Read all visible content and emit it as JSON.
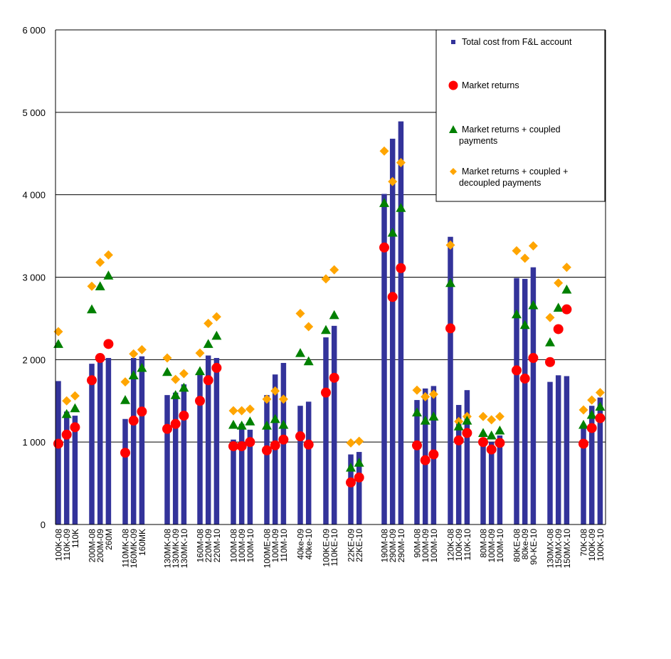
{
  "chart_data": {
    "type": "bar",
    "title": "",
    "xlabel": "",
    "ylabel": "",
    "ylim": [
      0,
      6000
    ],
    "yticks": [
      0,
      1000,
      2000,
      3000,
      4000,
      5000,
      6000
    ],
    "ytick_labels": [
      "0",
      "1 000",
      "2 000",
      "3 000",
      "4 000",
      "5 000",
      "6 000"
    ],
    "grid": true,
    "legend_position": "top-right",
    "colors": {
      "bar": "#33339a",
      "market": "#ff0000",
      "coupled": "#008000",
      "decoupled": "#ffa500",
      "grid": "#000000"
    },
    "groups": [
      {
        "categories": [
          "100K-08",
          "110K-09",
          "110K"
        ]
      },
      {
        "categories": [
          "200M-08",
          "200M-09",
          "260M"
        ]
      },
      {
        "categories": [
          "110MK-08",
          "160MK-09",
          "160MK"
        ]
      },
      {
        "categories": [
          "130MK-08",
          "130MK-09",
          "130MK-10"
        ]
      },
      {
        "categories": [
          "160M-08",
          "220M-09",
          "220M-10"
        ]
      },
      {
        "categories": [
          "100M-08",
          "100M-09",
          "100M-10"
        ]
      },
      {
        "categories": [
          "100ME-08",
          "100M-09",
          "110M-10"
        ]
      },
      {
        "categories": [
          "40ke-09",
          "40ke-10"
        ]
      },
      {
        "categories": [
          "100KE-09",
          "110KE-10"
        ]
      },
      {
        "categories": [
          "22KE-09",
          "22KE-10"
        ]
      },
      {
        "categories": [
          "190M-08",
          "290M-09",
          "290M-10"
        ]
      },
      {
        "categories": [
          "90M-08",
          "100M-09",
          "100M-10"
        ]
      },
      {
        "categories": [
          "120K-08",
          "100K-09",
          "110K-10"
        ]
      },
      {
        "categories": [
          "80M-08",
          "100M-09",
          "100M-10"
        ]
      },
      {
        "categories": [
          "80KE-08",
          "80ke-09",
          "90-KE-10"
        ]
      },
      {
        "categories": [
          "130MX-08",
          "150MX-09",
          "150MX-10"
        ]
      },
      {
        "categories": [
          "70K-08",
          "100K-09",
          "100K-10"
        ]
      }
    ],
    "series": [
      {
        "name": "Total cost from F&L account",
        "type": "bar",
        "values": [
          1740,
          1370,
          1320,
          1950,
          2000,
          2020,
          1280,
          2020,
          2040,
          1570,
          1600,
          1700,
          1860,
          2050,
          2020,
          1030,
          1220,
          1150,
          1570,
          1820,
          1960,
          1440,
          1490,
          2270,
          2410,
          850,
          880,
          4010,
          4680,
          4890,
          1510,
          1650,
          1680,
          3490,
          1450,
          1630,
          1050,
          1000,
          1080,
          2990,
          2980,
          3120,
          1730,
          1810,
          1800,
          1200,
          1440,
          1540
        ]
      },
      {
        "name": "Market returns",
        "type": "circle",
        "values": [
          980,
          1090,
          1180,
          1750,
          2020,
          2190,
          870,
          1260,
          1370,
          1160,
          1220,
          1320,
          1500,
          1750,
          1900,
          950,
          950,
          1000,
          900,
          960,
          1030,
          1070,
          970,
          1600,
          1780,
          510,
          570,
          3360,
          2760,
          3110,
          960,
          780,
          850,
          2380,
          1020,
          1110,
          1000,
          910,
          990,
          1870,
          1770,
          2020,
          1970,
          2370,
          2610,
          980,
          1170,
          1290
        ]
      },
      {
        "name": "Market returns + coupled payments",
        "type": "triangle",
        "values": [
          2190,
          1340,
          1410,
          2610,
          2890,
          3020,
          1510,
          1810,
          1900,
          1850,
          1570,
          1660,
          1860,
          2190,
          2290,
          1210,
          1200,
          1250,
          1200,
          1280,
          1210,
          2080,
          1980,
          2360,
          2540,
          690,
          750,
          3900,
          3540,
          3840,
          1360,
          1260,
          1310,
          2930,
          1190,
          1260,
          1110,
          1080,
          1140,
          2550,
          2420,
          2660,
          2210,
          2630,
          2850,
          1210,
          1330,
          1430
        ]
      },
      {
        "name": "Market returns + coupled + decoupled payments",
        "type": "diamond",
        "values": [
          2340,
          1500,
          1560,
          2890,
          3180,
          3270,
          1730,
          2070,
          2120,
          2020,
          1760,
          1830,
          2080,
          2440,
          2520,
          1380,
          1380,
          1400,
          1520,
          1620,
          1520,
          2560,
          2400,
          2980,
          3090,
          990,
          1010,
          4530,
          4160,
          4390,
          1630,
          1550,
          1580,
          3390,
          1250,
          1310,
          1310,
          1270,
          1310,
          3320,
          3230,
          3380,
          2510,
          2930,
          3120,
          1390,
          1510,
          1600
        ]
      }
    ],
    "legend": [
      {
        "label": "Total cost from F&L account",
        "marker": "square"
      },
      {
        "label": "Market returns",
        "marker": "circle"
      },
      {
        "label_lines": [
          "Market returns + coupled",
          "payments"
        ],
        "marker": "triangle"
      },
      {
        "label_lines": [
          "Market returns + coupled +",
          "decoupled payments"
        ],
        "marker": "diamond"
      }
    ]
  }
}
